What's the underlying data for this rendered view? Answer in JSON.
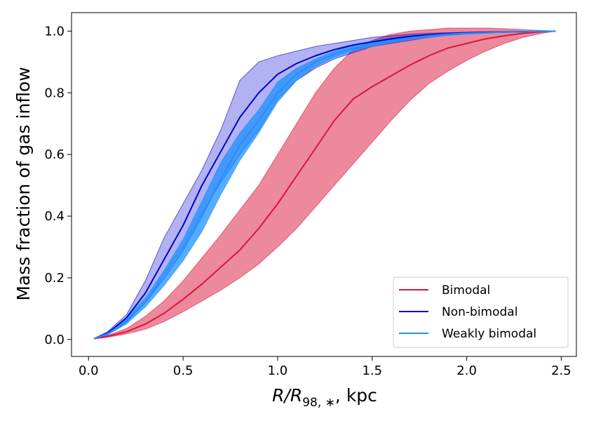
{
  "chart_data": {
    "type": "line",
    "title": "",
    "xlabel": {
      "main": "R/R",
      "sub": "98, ∗",
      "suffix": ", kpc"
    },
    "ylabel": "Mass fraction of gas inflow",
    "xlim": [
      -0.09,
      2.58
    ],
    "ylim": [
      -0.055,
      1.06
    ],
    "xticks": [
      0.0,
      0.5,
      1.0,
      1.5,
      2.0,
      2.5
    ],
    "xtick_labels": [
      "0.0",
      "0.5",
      "1.0",
      "1.5",
      "2.0",
      "2.5"
    ],
    "yticks": [
      0.0,
      0.2,
      0.4,
      0.6,
      0.8,
      1.0
    ],
    "ytick_labels": [
      "0.0",
      "0.2",
      "0.4",
      "0.6",
      "0.8",
      "1.0"
    ],
    "grid": false,
    "legend_position": "lower-right",
    "series": [
      {
        "name": "Bimodal",
        "color": "#dc143c",
        "x": [
          0.03,
          0.1,
          0.2,
          0.3,
          0.4,
          0.5,
          0.6,
          0.7,
          0.8,
          0.9,
          1.0,
          1.1,
          1.2,
          1.3,
          1.4,
          1.5,
          1.6,
          1.7,
          1.8,
          1.9,
          2.0,
          2.1,
          2.2,
          2.3,
          2.4,
          2.47
        ],
        "y": [
          0.003,
          0.01,
          0.025,
          0.05,
          0.085,
          0.13,
          0.18,
          0.235,
          0.29,
          0.36,
          0.44,
          0.53,
          0.62,
          0.71,
          0.78,
          0.82,
          0.855,
          0.89,
          0.92,
          0.945,
          0.96,
          0.975,
          0.985,
          0.993,
          0.998,
          1.0
        ],
        "lower": [
          0.002,
          0.007,
          0.018,
          0.033,
          0.058,
          0.09,
          0.125,
          0.16,
          0.2,
          0.245,
          0.3,
          0.36,
          0.43,
          0.5,
          0.57,
          0.64,
          0.71,
          0.775,
          0.83,
          0.87,
          0.905,
          0.935,
          0.96,
          0.98,
          0.993,
          1.0
        ],
        "upper": [
          0.004,
          0.013,
          0.035,
          0.075,
          0.125,
          0.19,
          0.265,
          0.34,
          0.42,
          0.5,
          0.6,
          0.7,
          0.8,
          0.88,
          0.94,
          0.97,
          0.99,
          1.0,
          1.005,
          1.01,
          1.01,
          1.01,
          1.008,
          1.005,
          1.002,
          1.0
        ]
      },
      {
        "name": "Non-bimodal",
        "color": "#0000cd",
        "x": [
          0.03,
          0.1,
          0.2,
          0.3,
          0.4,
          0.5,
          0.6,
          0.7,
          0.8,
          0.9,
          1.0,
          1.1,
          1.2,
          1.3,
          1.4,
          1.5,
          1.6,
          1.7,
          1.8,
          1.9,
          2.0,
          2.1,
          2.2,
          2.3,
          2.4,
          2.47
        ],
        "y": [
          0.003,
          0.02,
          0.07,
          0.15,
          0.26,
          0.37,
          0.5,
          0.61,
          0.72,
          0.8,
          0.86,
          0.895,
          0.92,
          0.94,
          0.955,
          0.965,
          0.975,
          0.983,
          0.988,
          0.992,
          0.994,
          0.996,
          0.997,
          0.998,
          0.999,
          1.0
        ],
        "lower": [
          0.002,
          0.015,
          0.055,
          0.12,
          0.21,
          0.3,
          0.41,
          0.51,
          0.6,
          0.68,
          0.78,
          0.84,
          0.88,
          0.91,
          0.93,
          0.95,
          0.96,
          0.97,
          0.98,
          0.987,
          0.991,
          0.994,
          0.996,
          0.998,
          0.999,
          1.0
        ],
        "upper": [
          0.004,
          0.025,
          0.08,
          0.19,
          0.33,
          0.44,
          0.55,
          0.68,
          0.84,
          0.9,
          0.92,
          0.935,
          0.95,
          0.96,
          0.97,
          0.98,
          0.985,
          0.99,
          0.993,
          0.995,
          0.997,
          0.998,
          0.999,
          1.0,
          1.0,
          1.0
        ]
      },
      {
        "name": "Weakly bimodal",
        "color": "#1e90ff",
        "x": [
          0.03,
          0.1,
          0.2,
          0.3,
          0.4,
          0.5,
          0.6,
          0.7,
          0.8,
          0.9,
          1.0,
          1.1,
          1.2,
          1.3,
          1.4,
          1.5,
          1.6,
          1.7,
          1.8,
          1.9,
          2.0,
          2.1,
          2.2,
          2.3,
          2.4,
          2.47
        ],
        "y": [
          0.003,
          0.018,
          0.06,
          0.12,
          0.2,
          0.29,
          0.4,
          0.52,
          0.63,
          0.71,
          0.8,
          0.86,
          0.9,
          0.925,
          0.945,
          0.96,
          0.97,
          0.978,
          0.985,
          0.99,
          0.993,
          0.995,
          0.997,
          0.998,
          0.999,
          1.0
        ],
        "lower": [
          0.002,
          0.015,
          0.05,
          0.105,
          0.175,
          0.255,
          0.35,
          0.47,
          0.58,
          0.67,
          0.77,
          0.84,
          0.885,
          0.915,
          0.935,
          0.95,
          0.962,
          0.972,
          0.98,
          0.986,
          0.99,
          0.993,
          0.996,
          0.998,
          0.999,
          1.0
        ],
        "upper": [
          0.004,
          0.022,
          0.07,
          0.135,
          0.225,
          0.325,
          0.45,
          0.575,
          0.67,
          0.745,
          0.835,
          0.88,
          0.91,
          0.935,
          0.955,
          0.968,
          0.977,
          0.984,
          0.989,
          0.993,
          0.995,
          0.997,
          0.998,
          0.999,
          1.0,
          1.0
        ]
      }
    ]
  }
}
